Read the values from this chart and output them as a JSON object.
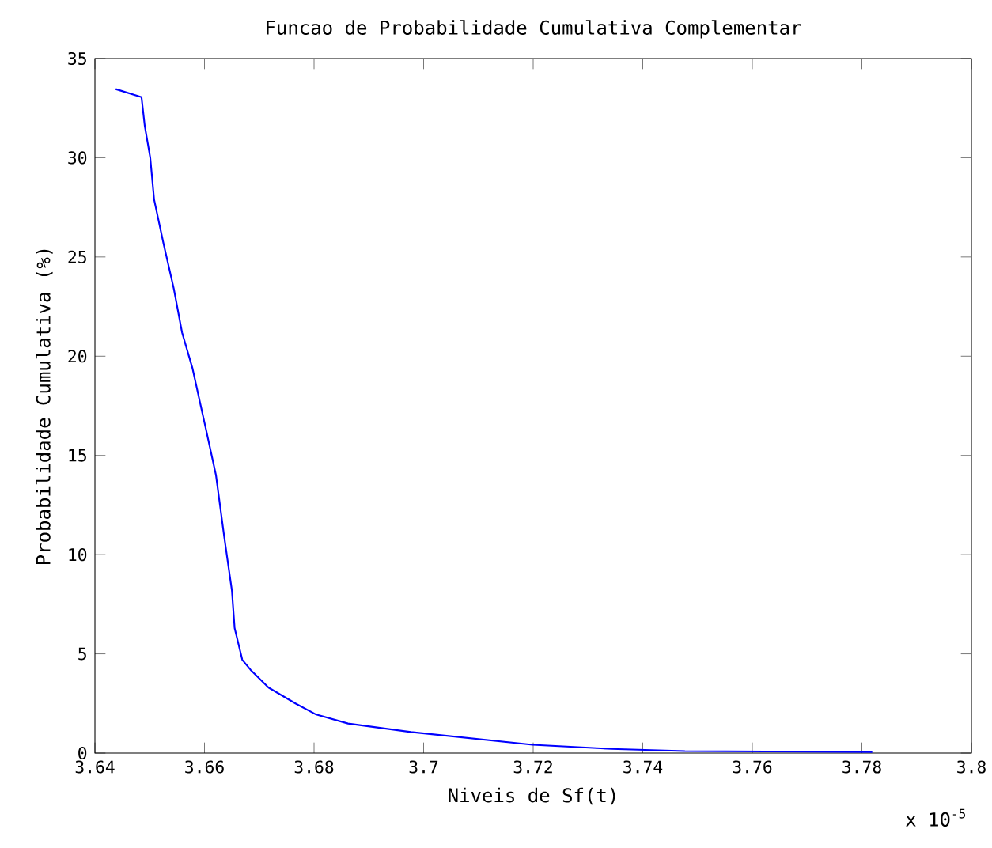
{
  "chart_data": {
    "type": "line",
    "title": "Funcao de Probabilidade Cumulativa Complementar",
    "xlabel": "Niveis de Sf(t)",
    "ylabel": "Probabilidade Cumulativa (%)",
    "annotations": [
      "x 10$^{-5}$"
    ],
    "series": [
      {
        "color": "#0000ff",
        "x": [
          3.6438,
          3.6485,
          3.6491,
          3.6501,
          3.6508,
          3.6525,
          3.6544,
          3.6559,
          3.6578,
          3.6602,
          3.6621,
          3.6636,
          3.665,
          3.6655,
          3.6669,
          3.6684,
          3.6717,
          3.6766,
          3.6804,
          3.6862,
          3.6977,
          3.7199,
          3.7343,
          3.7477,
          3.7819
        ],
        "values": [
          33.46,
          33.06,
          31.6,
          30.0,
          27.9,
          25.7,
          23.4,
          21.2,
          19.4,
          16.4,
          14.0,
          10.9,
          8.2,
          6.3,
          4.7,
          4.2,
          3.3,
          2.5,
          1.94,
          1.49,
          1.06,
          0.42,
          0.21,
          0.1,
          0.05
        ]
      }
    ],
    "xlim": [
      3.64,
      3.8
    ],
    "ylim": [
      0,
      35
    ],
    "xticks": [
      3.64,
      3.66,
      3.68,
      3.7,
      3.72,
      3.74,
      3.76,
      3.78,
      3.8
    ],
    "yticks": [
      0,
      5,
      10,
      15,
      20,
      25,
      30,
      35
    ],
    "marker": "none",
    "line_style": "solid"
  }
}
